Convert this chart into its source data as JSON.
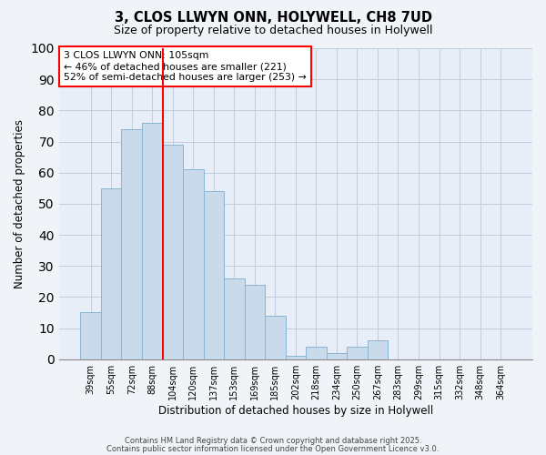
{
  "title1": "3, CLOS LLWYN ONN, HOLYWELL, CH8 7UD",
  "title2": "Size of property relative to detached houses in Holywell",
  "xlabel": "Distribution of detached houses by size in Holywell",
  "ylabel": "Number of detached properties",
  "bar_labels": [
    "39sqm",
    "55sqm",
    "72sqm",
    "88sqm",
    "104sqm",
    "120sqm",
    "137sqm",
    "153sqm",
    "169sqm",
    "185sqm",
    "202sqm",
    "218sqm",
    "234sqm",
    "250sqm",
    "267sqm",
    "283sqm",
    "299sqm",
    "315sqm",
    "332sqm",
    "348sqm",
    "364sqm"
  ],
  "bar_values": [
    15,
    55,
    74,
    76,
    69,
    61,
    54,
    26,
    24,
    14,
    1,
    4,
    2,
    4,
    6,
    0,
    0,
    0,
    0,
    0,
    0
  ],
  "bar_color": "#c9daea",
  "bar_edge_color": "#8ab4d4",
  "red_line_x": 3.5,
  "annotation_line1": "3 CLOS LLWYN ONN: 105sqm",
  "annotation_line2": "← 46% of detached houses are smaller (221)",
  "annotation_line3": "52% of semi-detached houses are larger (253) →",
  "ylim": [
    0,
    100
  ],
  "yticks": [
    0,
    10,
    20,
    30,
    40,
    50,
    60,
    70,
    80,
    90,
    100
  ],
  "footer1": "Contains HM Land Registry data © Crown copyright and database right 2025.",
  "footer2": "Contains public sector information licensed under the Open Government Licence v3.0.",
  "fig_bg_color": "#f0f4f8",
  "plot_bg_color": "#e8eef8",
  "grid_color": "#c0ccdd"
}
